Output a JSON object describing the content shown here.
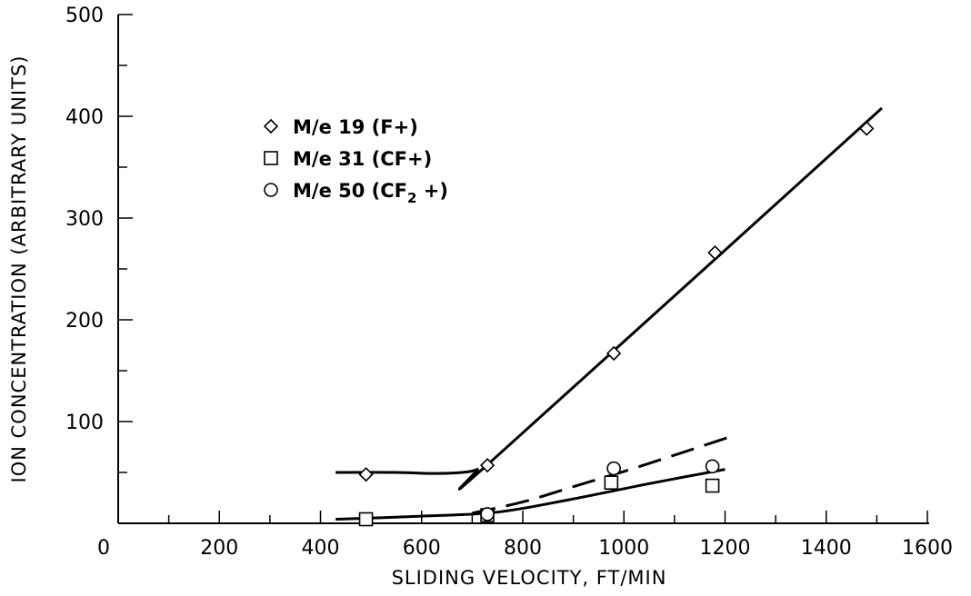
{
  "chart_data": {
    "type": "line",
    "title": "",
    "xlabel": "SLIDING VELOCITY, FT/MIN",
    "ylabel": "ION CONCENTRATION (ARBITRARY UNITS)",
    "xlim": [
      0,
      1600
    ],
    "ylim": [
      0,
      500
    ],
    "x_ticks": [
      "0",
      "200",
      "400",
      "600",
      "800",
      "1000",
      "1200",
      "1400",
      "1600"
    ],
    "y_ticks": [
      "0",
      "100",
      "200",
      "300",
      "400",
      "500"
    ],
    "grid": false,
    "legend_position": "top-left",
    "series": [
      {
        "name": "M/e 19 (F+)",
        "legend_parts": {
          "prefix": "M/e 19 (F+)",
          "sub": "",
          "suffix": ""
        },
        "marker": "diamond",
        "line_style": "solid",
        "points": [
          {
            "x": 490,
            "y": 48
          },
          {
            "x": 730,
            "y": 57
          },
          {
            "x": 980,
            "y": 167
          },
          {
            "x": 1180,
            "y": 266
          },
          {
            "x": 1480,
            "y": 388
          }
        ],
        "fit_line": [
          {
            "x": 430,
            "y": 50
          },
          {
            "x": 550,
            "y": 50
          },
          {
            "x": 620,
            "y": 49
          },
          {
            "x": 680,
            "y": 50
          },
          {
            "x": 710,
            "y": 53
          },
          {
            "x": 740,
            "y": 62
          },
          {
            "x": 1510,
            "y": 408
          }
        ]
      },
      {
        "name": "M/e 31 (CF+)",
        "legend_parts": {
          "prefix": "M/e 31 (CF+)",
          "sub": "",
          "suffix": ""
        },
        "marker": "square",
        "line_style": "solid",
        "points": [
          {
            "x": 490,
            "y": 4
          },
          {
            "x": 730,
            "y": 8
          },
          {
            "x": 975,
            "y": 40
          },
          {
            "x": 1175,
            "y": 37
          }
        ],
        "fit_line": [
          {
            "x": 430,
            "y": 4
          },
          {
            "x": 600,
            "y": 7
          },
          {
            "x": 750,
            "y": 11
          },
          {
            "x": 900,
            "y": 24
          },
          {
            "x": 1050,
            "y": 39
          },
          {
            "x": 1200,
            "y": 53
          }
        ]
      },
      {
        "name": "M/e 50 (CF2 +)",
        "legend_parts": {
          "prefix": "M/e 50 (CF",
          "sub": "2",
          "suffix": " +)"
        },
        "marker": "circle",
        "line_style": "dashed",
        "points": [
          {
            "x": 730,
            "y": 9
          },
          {
            "x": 980,
            "y": 54
          },
          {
            "x": 1175,
            "y": 56
          }
        ],
        "fit_line": [
          {
            "x": 700,
            "y": 10
          },
          {
            "x": 800,
            "y": 21
          },
          {
            "x": 900,
            "y": 36
          },
          {
            "x": 1000,
            "y": 51
          },
          {
            "x": 1100,
            "y": 67
          },
          {
            "x": 1210,
            "y": 85
          }
        ]
      }
    ]
  }
}
